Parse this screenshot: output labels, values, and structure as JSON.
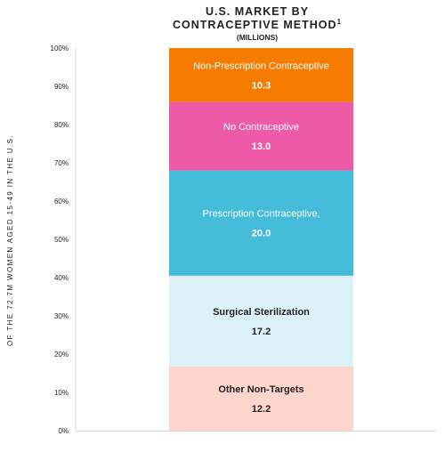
{
  "chart_data": {
    "type": "bar",
    "stacked": true,
    "title_line1": "U.S. MARKET BY",
    "title_line2": "CONTRACEPTIVE METHOD",
    "title_superscript": "1",
    "subtitle": "(MILLIONS)",
    "ylabel": "OF THE 72.7M WOMEN AGED 15-49 IN THE U.S.",
    "xlabel": "",
    "ylim": [
      0,
      100
    ],
    "y_ticks": [
      "0%",
      "10%",
      "20%",
      "30%",
      "40%",
      "50%",
      "60%",
      "70%",
      "80%",
      "90%",
      "100%"
    ],
    "grid": false,
    "segments": [
      {
        "label": "Other Non-Targets",
        "value": 12.2,
        "pct": 16.8,
        "color": "#fdd5cd",
        "text_color": "#222222"
      },
      {
        "label": "Surgical Sterilization",
        "value": 17.2,
        "pct": 23.7,
        "color": "#dcf0f7",
        "text_color": "#222222"
      },
      {
        "label": "Prescription Contraceptive,",
        "value": 20.0,
        "pct": 27.5,
        "color": "#43bbd9",
        "text_color": "#ffffff"
      },
      {
        "label": "No Contraceptive",
        "value": 13.0,
        "pct": 17.9,
        "color": "#ef5aa8",
        "text_color": "#ffffff"
      },
      {
        "label": "Non-Prescription Contraceptive",
        "value": 10.3,
        "pct": 14.1,
        "color": "#f57c00",
        "text_color": "#ffffff"
      }
    ]
  }
}
